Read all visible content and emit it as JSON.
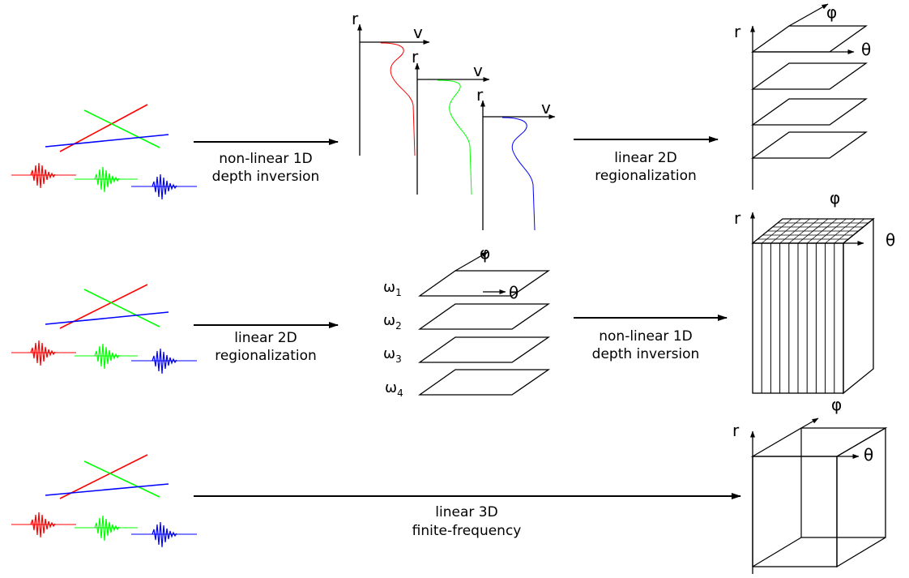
{
  "colors": {
    "red": "#ff0000",
    "green": "#00ff00",
    "blue": "#0000ff",
    "ink": "#000000"
  },
  "axes": {
    "r": "r",
    "v": "v",
    "phi": "φ",
    "theta": "θ"
  },
  "frequencies": [
    {
      "base": "ω",
      "sub": "1"
    },
    {
      "base": "ω",
      "sub": "2"
    },
    {
      "base": "ω",
      "sub": "3"
    },
    {
      "base": "ω",
      "sub": "4"
    }
  ],
  "pipeline_1": {
    "step1": [
      "non-linear 1D",
      "depth inversion"
    ],
    "step2": [
      "linear 2D",
      "regionalization"
    ]
  },
  "pipeline_2": {
    "step1": [
      "linear 2D",
      "regionalization"
    ],
    "step2": [
      "non-linear 1D",
      "depth inversion"
    ]
  },
  "pipeline_3": {
    "step1": [
      "linear 3D",
      "finite-frequency"
    ]
  }
}
